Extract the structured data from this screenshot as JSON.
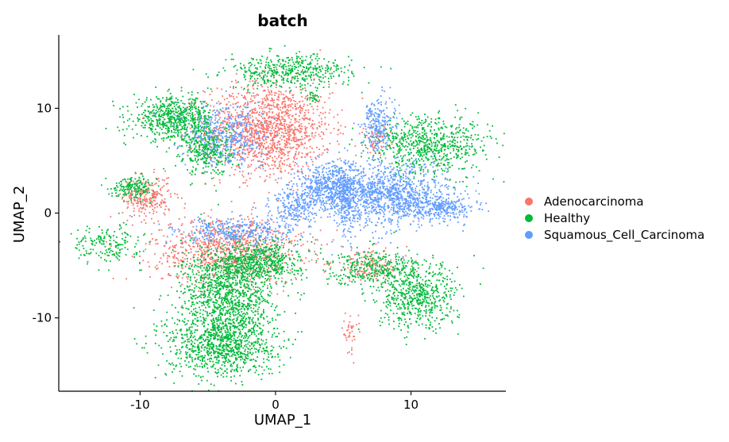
{
  "chart_data": {
    "type": "scatter",
    "title": "batch",
    "xlabel": "UMAP_1",
    "ylabel": "UMAP_2",
    "xlim": [
      -16,
      17
    ],
    "ylim": [
      -17,
      17
    ],
    "xticks": [
      -10,
      0,
      10
    ],
    "yticks": [
      -10,
      0,
      10
    ],
    "grid": false,
    "legend_position": "right",
    "series": [
      {
        "name": "Adenocarcinoma",
        "color": "#F8766D",
        "clusters": [
          {
            "cx": -0.5,
            "cy": 8.0,
            "sx": 2.3,
            "sy": 2.2,
            "n": 1400
          },
          {
            "cx": -9.5,
            "cy": 1.5,
            "sx": 0.9,
            "sy": 1.0,
            "n": 260
          },
          {
            "cx": -3.5,
            "cy": -3.5,
            "sx": 2.8,
            "sy": 1.6,
            "n": 900
          },
          {
            "cx": 7.5,
            "cy": 7.0,
            "sx": 0.5,
            "sy": 0.6,
            "n": 60
          },
          {
            "cx": 7.0,
            "cy": -5.0,
            "sx": 1.4,
            "sy": 0.8,
            "n": 150
          },
          {
            "cx": 5.5,
            "cy": -11.5,
            "sx": 0.3,
            "sy": 0.9,
            "n": 40
          }
        ]
      },
      {
        "name": "Healthy",
        "color": "#00BA38",
        "clusters": [
          {
            "cx": -7.5,
            "cy": 9.0,
            "sx": 1.5,
            "sy": 1.0,
            "n": 650
          },
          {
            "cx": -5.0,
            "cy": 6.0,
            "sx": 0.9,
            "sy": 1.2,
            "n": 350
          },
          {
            "cx": 1.0,
            "cy": 13.5,
            "sx": 2.3,
            "sy": 0.8,
            "n": 450
          },
          {
            "cx": -10.5,
            "cy": 2.5,
            "sx": 0.8,
            "sy": 0.5,
            "n": 170
          },
          {
            "cx": -12.5,
            "cy": -3.0,
            "sx": 1.3,
            "sy": 0.9,
            "n": 180
          },
          {
            "cx": -4.0,
            "cy": -12.5,
            "sx": 2.0,
            "sy": 1.6,
            "n": 1000
          },
          {
            "cx": -3.5,
            "cy": -7.5,
            "sx": 1.7,
            "sy": 2.2,
            "n": 1100
          },
          {
            "cx": -1.0,
            "cy": -4.5,
            "sx": 1.4,
            "sy": 1.0,
            "n": 500
          },
          {
            "cx": 11.5,
            "cy": 6.5,
            "sx": 2.2,
            "sy": 1.4,
            "n": 700
          },
          {
            "cx": 10.5,
            "cy": -8.0,
            "sx": 1.5,
            "sy": 1.6,
            "n": 600
          },
          {
            "cx": 7.0,
            "cy": -5.2,
            "sx": 1.6,
            "sy": 0.8,
            "n": 300
          },
          {
            "cx": 2.8,
            "cy": 11.0,
            "sx": 0.2,
            "sy": 0.3,
            "n": 25
          }
        ]
      },
      {
        "name": "Squamous_Cell_Carcinoma",
        "color": "#619CFF",
        "clusters": [
          {
            "cx": 8.5,
            "cy": 1.8,
            "sx": 2.2,
            "sy": 1.5,
            "n": 1100
          },
          {
            "cx": 12.0,
            "cy": 0.5,
            "sx": 1.4,
            "sy": 0.6,
            "n": 280
          },
          {
            "cx": 4.0,
            "cy": 2.5,
            "sx": 1.3,
            "sy": 1.1,
            "n": 550
          },
          {
            "cx": 1.5,
            "cy": 0.5,
            "sx": 0.9,
            "sy": 0.8,
            "n": 220
          },
          {
            "cx": 5.2,
            "cy": 1.0,
            "sx": 0.4,
            "sy": 1.8,
            "n": 200
          },
          {
            "cx": 7.5,
            "cy": 8.5,
            "sx": 0.6,
            "sy": 1.3,
            "n": 240
          },
          {
            "cx": -3.5,
            "cy": 7.5,
            "sx": 1.5,
            "sy": 1.5,
            "n": 400
          },
          {
            "cx": -3.0,
            "cy": -1.8,
            "sx": 2.2,
            "sy": 0.7,
            "n": 350
          }
        ]
      }
    ]
  }
}
